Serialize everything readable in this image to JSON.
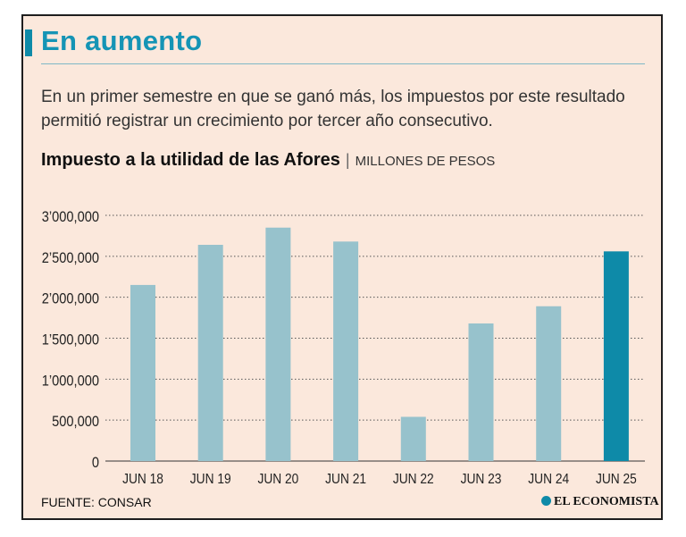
{
  "header": {
    "title": "En aumento",
    "subtitle": "En un primer semestre en que se ganó más, los impuestos por este resultado permitió registrar un crecimiento por tercer año consecutivo.",
    "chart_title": "Impuesto a la utilidad de las Afores",
    "separator": "|",
    "units": "MILLONES DE PESOS"
  },
  "footer": {
    "source": "FUENTE: CONSAR",
    "brand": "EL ECONOMISTA"
  },
  "colors": {
    "background": "#fbe8dc",
    "bar": "#97c2cc",
    "bar_highlight": "#0e8aa8",
    "title": "#1594b5"
  },
  "chart_data": {
    "type": "bar",
    "categories": [
      "JUN 18",
      "JUN 19",
      "JUN 20",
      "JUN 21",
      "JUN 22",
      "JUN 23",
      "JUN 24",
      "JUN 25"
    ],
    "values": [
      2150000,
      2640000,
      2850000,
      2680000,
      540000,
      1680000,
      1890000,
      2560000
    ],
    "highlight_index": 7,
    "ylim": [
      0,
      3000000
    ],
    "yticks": [
      0,
      500000,
      1000000,
      1500000,
      2000000,
      2500000,
      3000000
    ],
    "ytick_labels": [
      "0",
      "500,000",
      "1’000,000",
      "1’500,000",
      "2’000,000",
      "2’500,000",
      "3’000,000"
    ],
    "grid": true,
    "xlabel": "",
    "ylabel": ""
  }
}
